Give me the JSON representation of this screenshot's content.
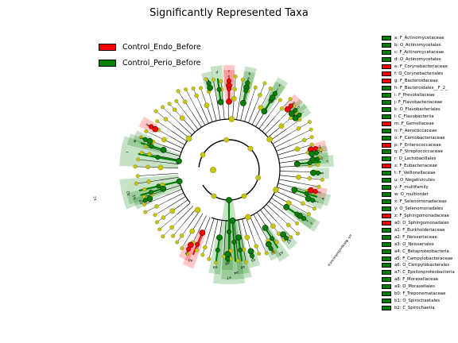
{
  "chart_data": {
    "type": "cladogram",
    "title": "Significantly Represented Taxa",
    "groups": [
      {
        "name": "Control_Endo_Before",
        "color": "#ff0000"
      },
      {
        "name": "Control_Perio_Before",
        "color": "#008000"
      }
    ],
    "background_node_color": "#c5c500",
    "taxa": [
      {
        "key": "a",
        "name": "F_Actinomycetaceae",
        "group": "Control_Perio_Before"
      },
      {
        "key": "b",
        "name": "O_Actinomycetales",
        "group": "Control_Perio_Before"
      },
      {
        "key": "c",
        "name": "F_Actinomycetaceae",
        "group": "Control_Perio_Before"
      },
      {
        "key": "d",
        "name": "O_Actinomycetales",
        "group": "Control_Perio_Before"
      },
      {
        "key": "e",
        "name": "F_Corynebacteriaceae",
        "group": "Control_Endo_Before"
      },
      {
        "key": "f",
        "name": "O_Corynebacteriales",
        "group": "Control_Endo_Before"
      },
      {
        "key": "g",
        "name": "F_Bacteroidaceae",
        "group": "Control_Endo_Before"
      },
      {
        "key": "h",
        "name": "F_Bacteroidales__F_2_",
        "group": "Control_Perio_Before"
      },
      {
        "key": "i",
        "name": "F_Prevotellaceae",
        "group": "Control_Perio_Before"
      },
      {
        "key": "j",
        "name": "F_Flavobacteriaceae",
        "group": "Control_Perio_Before"
      },
      {
        "key": "k",
        "name": "O_Flavobacteriales",
        "group": "Control_Perio_Before"
      },
      {
        "key": "l",
        "name": "C_Flavobacteriia",
        "group": "Control_Perio_Before"
      },
      {
        "key": "m",
        "name": "F_Gemellaceae",
        "group": "Control_Endo_Before"
      },
      {
        "key": "n",
        "name": "F_Aerococcaceae",
        "group": "Control_Perio_Before"
      },
      {
        "key": "o",
        "name": "F_Carnobacteriaceae",
        "group": "Control_Perio_Before"
      },
      {
        "key": "p",
        "name": "F_Enterococcaceae",
        "group": "Control_Endo_Before"
      },
      {
        "key": "q",
        "name": "F_Streptococcaceae",
        "group": "Control_Perio_Before"
      },
      {
        "key": "r",
        "name": "O_Lactobacillales",
        "group": "Control_Perio_Before"
      },
      {
        "key": "s",
        "name": "F_Eubacteriaceae",
        "group": "Control_Endo_Before"
      },
      {
        "key": "t",
        "name": "F_Veillonellaceae",
        "group": "Control_Perio_Before"
      },
      {
        "key": "u",
        "name": "O_Negativicutes",
        "group": "Control_Perio_Before"
      },
      {
        "key": "v",
        "name": "F_multifamily",
        "group": "Control_Perio_Before"
      },
      {
        "key": "w",
        "name": "O_multiorder",
        "group": "Control_Perio_Before"
      },
      {
        "key": "x",
        "name": "F_Selenomonadaceae",
        "group": "Control_Perio_Before"
      },
      {
        "key": "y",
        "name": "O_Selenomonadales",
        "group": "Control_Perio_Before"
      },
      {
        "key": "z",
        "name": "F_Sphingomonadaceae",
        "group": "Control_Endo_Before"
      },
      {
        "key": "a0",
        "name": "O_Sphingomonadales",
        "group": "Control_Endo_Before"
      },
      {
        "key": "a1",
        "name": "F_Burkholderiaceae",
        "group": "Control_Perio_Before"
      },
      {
        "key": "a2",
        "name": "F_Neisseriaceae",
        "group": "Control_Perio_Before"
      },
      {
        "key": "a3",
        "name": "O_Neisseriales",
        "group": "Control_Perio_Before"
      },
      {
        "key": "a4",
        "name": "C_Betaproteobacteria",
        "group": "Control_Perio_Before"
      },
      {
        "key": "a5",
        "name": "F_Campylobacteraceae",
        "group": "Control_Perio_Before"
      },
      {
        "key": "a6",
        "name": "O_Campylobacterales",
        "group": "Control_Perio_Before"
      },
      {
        "key": "a7",
        "name": "C_Epsilonproteobacteria",
        "group": "Control_Perio_Before"
      },
      {
        "key": "a8",
        "name": "F_Moraxellaceae",
        "group": "Control_Perio_Before"
      },
      {
        "key": "a9",
        "name": "O_Moraxellales",
        "group": "Control_Perio_Before"
      },
      {
        "key": "b0",
        "name": "F_Treponemataceae",
        "group": "Control_Perio_Before"
      },
      {
        "key": "b1",
        "name": "O_Spirochaetales",
        "group": "Control_Perio_Before"
      },
      {
        "key": "b2",
        "name": "C_Spirochaetia",
        "group": "Control_Perio_Before"
      }
    ],
    "clades": [
      {
        "label": "a",
        "group": "Control_Perio_Before",
        "angle": -78,
        "level": 4
      },
      {
        "label": "b",
        "group": "Control_Perio_Before",
        "angle": -78,
        "level": 3
      },
      {
        "label": "e",
        "group": "Control_Endo_Before",
        "angle": -90,
        "level": 4
      },
      {
        "label": "f",
        "group": "Control_Endo_Before",
        "angle": -90,
        "level": 3
      },
      {
        "label": "d",
        "group": "Control_Perio_Before",
        "angle": -97,
        "level": 3
      },
      {
        "label": "c",
        "group": "Control_Perio_Before",
        "angle": -103,
        "level": 4
      },
      {
        "label": "k",
        "group": "Control_Perio_Before",
        "angle": -59,
        "level": 3
      },
      {
        "label": "j",
        "group": "Control_Perio_Before",
        "angle": -59,
        "level": 4
      },
      {
        "label": "g",
        "group": "Control_Endo_Before",
        "angle": -46,
        "level": 4
      },
      {
        "label": "h",
        "group": "Control_Perio_Before",
        "angle": -42,
        "level": 4
      },
      {
        "label": "i",
        "group": "Control_Perio_Before",
        "angle": -38,
        "level": 4
      },
      {
        "label": "m",
        "group": "Control_Endo_Before",
        "angle": -14,
        "level": 4
      },
      {
        "label": "n",
        "group": "Control_Perio_Before",
        "angle": -11,
        "level": 4
      },
      {
        "label": "o",
        "group": "Control_Perio_Before",
        "angle": -7,
        "level": 4
      },
      {
        "label": "r",
        "group": "Control_Perio_Before",
        "angle": -5,
        "level": 3
      },
      {
        "label": "q",
        "group": "Control_Perio_Before",
        "angle": 2,
        "level": 4
      },
      {
        "label": "s",
        "group": "Control_Endo_Before",
        "angle": 14,
        "level": 4
      },
      {
        "label": "u",
        "group": "Control_Perio_Before",
        "angle": 17,
        "level": 3
      },
      {
        "label": "t",
        "group": "Control_Perio_Before",
        "angle": 20,
        "level": 4
      },
      {
        "label": "x",
        "group": "Control_Perio_Before",
        "angle": 33,
        "level": 4
      },
      {
        "label": "y",
        "group": "Control_Perio_Before",
        "angle": 33,
        "level": 3
      },
      {
        "label": "a1",
        "group": "Control_Perio_Before",
        "angle": 50,
        "level": 4
      },
      {
        "label": "a3",
        "group": "Control_Perio_Before",
        "angle": 58,
        "level": 3
      },
      {
        "label": "a2",
        "group": "Control_Perio_Before",
        "angle": 62,
        "level": 4
      },
      {
        "label": "a4",
        "group": "Control_Perio_Before",
        "angle": 86,
        "level": 2
      },
      {
        "label": "a5",
        "group": "Control_Perio_Before",
        "angle": 75,
        "level": 4
      },
      {
        "label": "a6",
        "group": "Control_Perio_Before",
        "angle": 82,
        "level": 3
      },
      {
        "label": "a8",
        "group": "Control_Perio_Before",
        "angle": 91,
        "level": 4
      },
      {
        "label": "a9",
        "group": "Control_Perio_Before",
        "angle": 98,
        "level": 3
      },
      {
        "label": "z",
        "group": "Control_Endo_Before",
        "angle": 117,
        "level": 4
      },
      {
        "label": "a0",
        "group": "Control_Endo_Before",
        "angle": 113,
        "level": 3
      },
      {
        "label": "b0",
        "group": "Control_Perio_Before",
        "angle": 160,
        "level": 4
      },
      {
        "label": "b1",
        "group": "Control_Perio_Before",
        "angle": 164,
        "level": 3
      },
      {
        "label": "b2",
        "group": "Control_Perio_Before",
        "angle": 167,
        "level": 2
      },
      {
        "label": "l",
        "group": "Control_Perio_Before",
        "angle": -170,
        "level": 2
      },
      {
        "label": "v",
        "group": "Control_Perio_Before",
        "angle": -160,
        "level": 4
      },
      {
        "label": "w",
        "group": "Control_Perio_Before",
        "angle": -163,
        "level": 3
      },
      {
        "label": "p",
        "group": "Control_Endo_Before",
        "angle": -151,
        "level": 4
      },
      {
        "label": "a7",
        "group": "Control_Perio_Before",
        "angle": 90,
        "level": 1
      }
    ],
    "outer_labels": [
      {
        "text": "a4: Betaproteobacteria",
        "angle": 36
      },
      {
        "text": "b2",
        "angle": 168
      }
    ]
  }
}
